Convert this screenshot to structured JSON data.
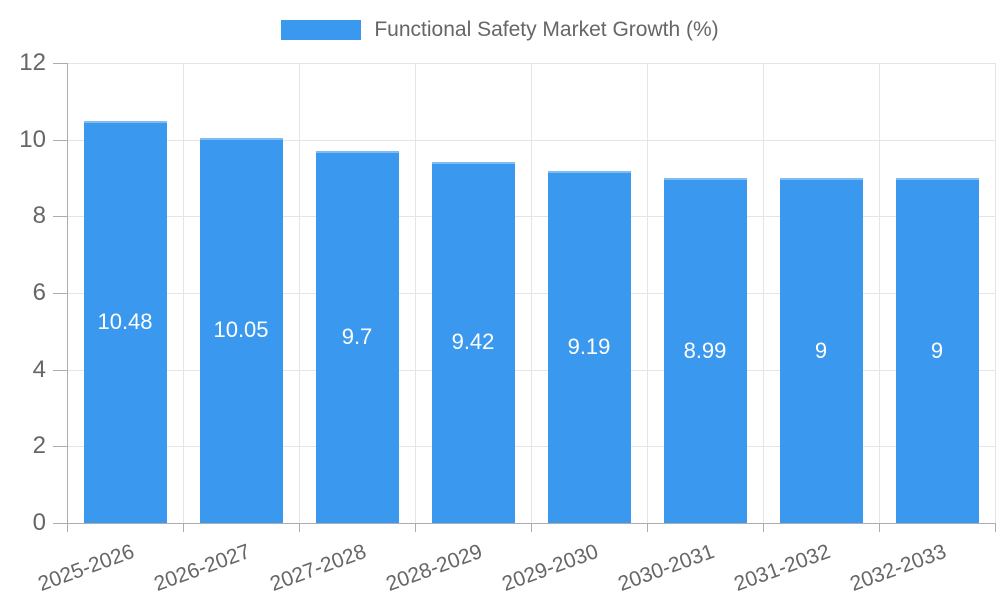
{
  "chart_data": {
    "type": "bar",
    "title": "",
    "legend": "Functional Safety Market Growth (%)",
    "legend_position": "top-center",
    "categories": [
      "2025-2026",
      "2026-2027",
      "2027-2028",
      "2028-2029",
      "2029-2030",
      "2030-2031",
      "2031-2032",
      "2032-2033"
    ],
    "values": [
      10.48,
      10.05,
      9.7,
      9.42,
      9.19,
      8.99,
      9,
      9
    ],
    "value_labels": [
      "10.48",
      "10.05",
      "9.7",
      "9.42",
      "9.19",
      "8.99",
      "9",
      "9"
    ],
    "xlabel": "",
    "ylabel": "",
    "ylim": [
      0,
      12
    ],
    "yticks": [
      0,
      2,
      4,
      6,
      8,
      10,
      12
    ],
    "grid": true,
    "x_tick_rotation_deg": -20,
    "colors": {
      "bar": "#3a99ee",
      "grid": "#e5e5e5",
      "axis": "#adadad",
      "tick_text": "#666666",
      "legend_text": "#666666",
      "value_label_text": "#ffffff",
      "background": "#ffffff"
    }
  }
}
